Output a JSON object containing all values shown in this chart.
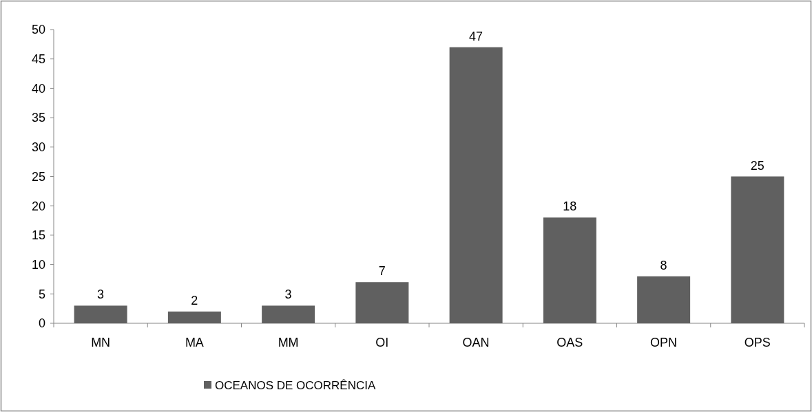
{
  "chart_data": {
    "type": "bar",
    "categories": [
      "MN",
      "MA",
      "MM",
      "OI",
      "OAN",
      "OAS",
      "OPN",
      "OPS"
    ],
    "series": [
      {
        "name": "OCEANOS DE OCORRÊNCIA",
        "color": "#606060",
        "values": [
          3,
          2,
          3,
          7,
          47,
          18,
          8,
          25
        ]
      }
    ],
    "ylim": [
      0,
      50
    ],
    "yticks": [
      0,
      5,
      10,
      15,
      20,
      25,
      30,
      35,
      40,
      45,
      50
    ],
    "data_labels": true,
    "legend": "bottom"
  }
}
